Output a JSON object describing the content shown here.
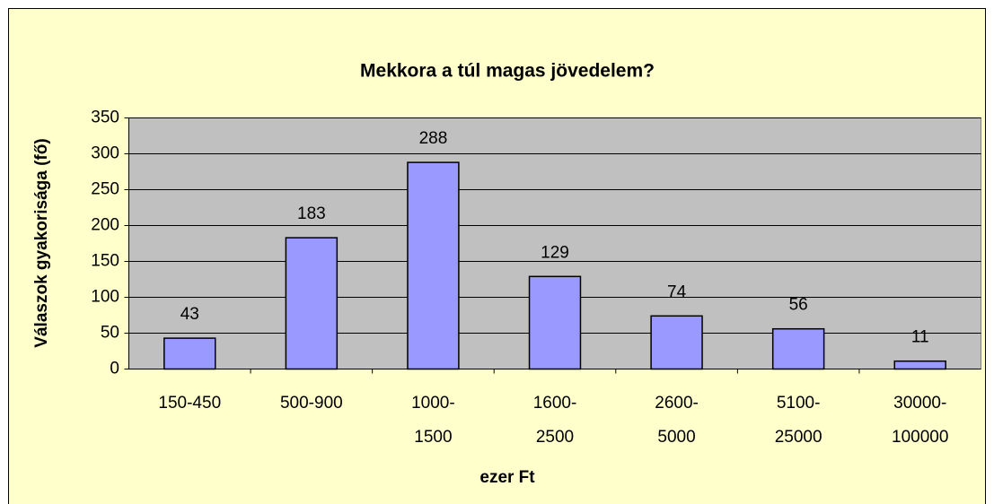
{
  "chart_data": {
    "type": "bar",
    "title": "Mekkora a túl magas jövedelem?",
    "x_label": "ezer Ft",
    "y_label": "Válaszok gyakorisága (fő)",
    "categories": [
      "150-450",
      "500-900",
      "1000-1500",
      "1600-2500",
      "2600-5000",
      "5100-25000",
      "30000-100000"
    ],
    "values": [
      43,
      183,
      288,
      129,
      74,
      56,
      11
    ],
    "color": "#9999ff",
    "ylim": [
      0,
      350
    ],
    "yticks": [
      0,
      50,
      100,
      150,
      200,
      250,
      300,
      350
    ],
    "grid": true
  }
}
